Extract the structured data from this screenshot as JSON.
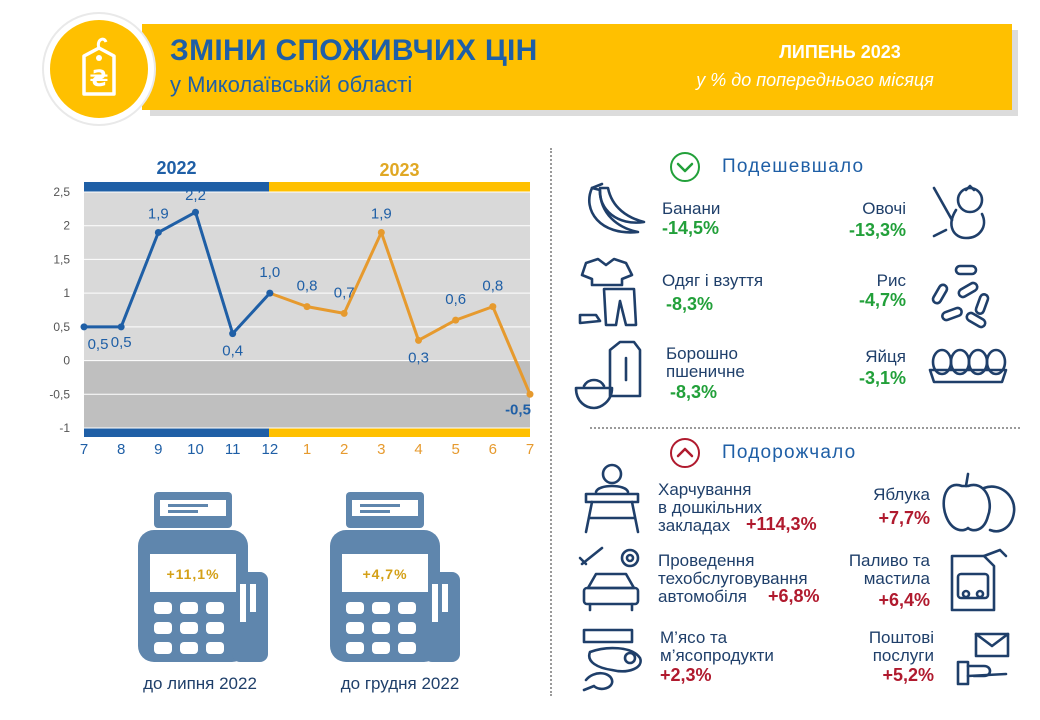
{
  "header": {
    "title": "ЗМІНИ СПОЖИВЧИХ ЦІН",
    "subtitle": "у Миколаївській області",
    "period": "ЛИПЕНЬ 2023",
    "period_note": "у % до попереднього місяця",
    "logo_symbol": "₴"
  },
  "colors": {
    "blue": "#1f5fa6",
    "yellow": "#ffc000",
    "orange": "#e69a2e",
    "green": "#22a03a",
    "red": "#b01a2e"
  },
  "chart_data": {
    "type": "line",
    "year_labels": [
      "2022",
      "2023"
    ],
    "categories": [
      "7",
      "8",
      "9",
      "10",
      "11",
      "12",
      "1",
      "2",
      "3",
      "4",
      "5",
      "6",
      "7"
    ],
    "y_ticks": [
      "2,5",
      "2",
      "1,5",
      "1",
      "0,5",
      "0",
      "-0,5",
      "-1"
    ],
    "ylim": [
      -1,
      2.5
    ],
    "series": [
      {
        "values": [
          0.5,
          0.5,
          1.9,
          2.2,
          0.4,
          1.0,
          0.8,
          0.7,
          1.9,
          0.3,
          0.6,
          0.8,
          -0.5
        ],
        "labels": [
          "0,5",
          "0,5",
          "1,9",
          "2,2",
          "0,4",
          "1,0",
          "0,8",
          "0,7",
          "1,9",
          "0,3",
          "0,6",
          "0,8",
          "-0,5"
        ]
      }
    ]
  },
  "terminals": [
    {
      "value": "+11,1%",
      "label": "до липня 2022"
    },
    {
      "value": "+4,7%",
      "label": "до грудня 2022"
    }
  ],
  "cheaper": {
    "title": "Подешевшало",
    "items": [
      {
        "name": "Банани",
        "value": "-14,5%",
        "icon": "banana-icon"
      },
      {
        "name": "Овочі",
        "value": "-13,3%",
        "icon": "vegetables-icon"
      },
      {
        "name": "Одяг і взуття",
        "value": "-8,3%",
        "icon": "clothes-icon"
      },
      {
        "name": "Рис",
        "value": "-4,7%",
        "icon": "rice-icon"
      },
      {
        "name_l1": "Борошно",
        "name_l2": "пшеничне",
        "value": "-8,3%",
        "icon": "flour-icon"
      },
      {
        "name": "Яйця",
        "value": "-3,1%",
        "icon": "eggs-icon"
      }
    ]
  },
  "pricier": {
    "title": "Подорожчало",
    "items": [
      {
        "name_l1": "Харчування",
        "name_l2": "в дошкільних",
        "name_l3": "закладах",
        "value": "+114,3%",
        "icon": "child-meal-icon"
      },
      {
        "name": "Яблука",
        "value": "+7,7%",
        "icon": "apple-icon"
      },
      {
        "name_l1": "Проведення",
        "name_l2": "техобслуговування",
        "name_l3": "автомобіля",
        "value": "+6,8%",
        "icon": "car-service-icon"
      },
      {
        "name_l1": "Паливо та",
        "name_l2": "мастила",
        "value": "+6,4%",
        "icon": "fuel-icon"
      },
      {
        "name_l1": "М’ясо та",
        "name_l2": "м’ясопродукти",
        "value": "+2,3%",
        "icon": "meat-icon"
      },
      {
        "name_l1": "Поштові",
        "name_l2": "послуги",
        "value": "+5,2%",
        "icon": "mail-icon"
      }
    ]
  }
}
